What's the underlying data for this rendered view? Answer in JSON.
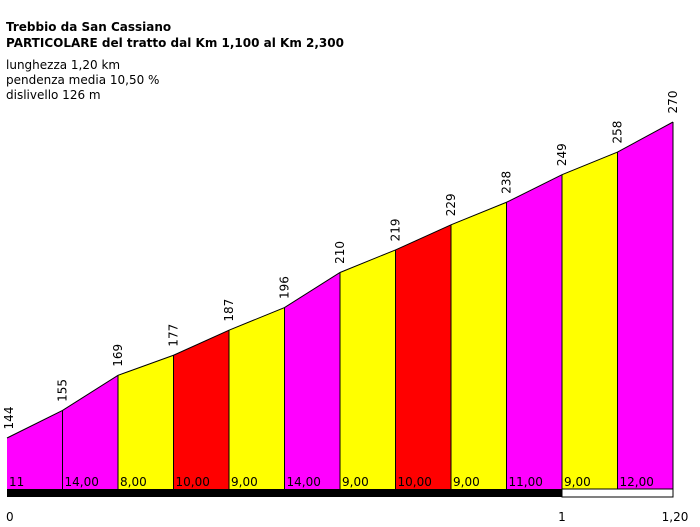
{
  "header": {
    "title": "Trebbio da San Cassiano",
    "subtitle": "PARTICOLARE del tratto dal Km 1,100 al Km 2,300"
  },
  "stats": {
    "length": "lunghezza 1,20 km",
    "avg_gradient": "pendenza media 10,50 %",
    "elevation_gain": "dislivello 126 m"
  },
  "colors": {
    "magenta": "#ff00ff",
    "yellow": "#ffff00",
    "red": "#ff0000",
    "outline": "#000000"
  },
  "chart_data": {
    "type": "area",
    "x_tick_labels": [
      {
        "value": 0,
        "label": "0"
      },
      {
        "value": 1.0,
        "label": "1"
      },
      {
        "value": 1.2,
        "label": "1,20"
      }
    ],
    "xlim": [
      0,
      1.2
    ],
    "ylim": [
      144,
      270
    ],
    "grid": false,
    "segments": [
      {
        "x0": 0.0,
        "x1": 0.1,
        "y0": 144,
        "y1": 155,
        "gradient": "11",
        "color": "magenta"
      },
      {
        "x0": 0.1,
        "x1": 0.2,
        "y0": 155,
        "y1": 169,
        "gradient": "14,00",
        "color": "magenta"
      },
      {
        "x0": 0.2,
        "x1": 0.3,
        "y0": 169,
        "y1": 177,
        "gradient": "8,00",
        "color": "yellow"
      },
      {
        "x0": 0.3,
        "x1": 0.4,
        "y0": 177,
        "y1": 187,
        "gradient": "10,00",
        "color": "red"
      },
      {
        "x0": 0.4,
        "x1": 0.5,
        "y0": 187,
        "y1": 196,
        "gradient": "9,00",
        "color": "yellow"
      },
      {
        "x0": 0.5,
        "x1": 0.6,
        "y0": 196,
        "y1": 210,
        "gradient": "14,00",
        "color": "magenta"
      },
      {
        "x0": 0.6,
        "x1": 0.7,
        "y0": 210,
        "y1": 219,
        "gradient": "9,00",
        "color": "yellow"
      },
      {
        "x0": 0.7,
        "x1": 0.8,
        "y0": 219,
        "y1": 229,
        "gradient": "10,00",
        "color": "red"
      },
      {
        "x0": 0.8,
        "x1": 0.9,
        "y0": 229,
        "y1": 238,
        "gradient": "9,00",
        "color": "yellow"
      },
      {
        "x0": 0.9,
        "x1": 1.0,
        "y0": 238,
        "y1": 249,
        "gradient": "11,00",
        "color": "magenta"
      },
      {
        "x0": 1.0,
        "x1": 1.1,
        "y0": 249,
        "y1": 258,
        "gradient": "9,00",
        "color": "yellow"
      },
      {
        "x0": 1.1,
        "x1": 1.2,
        "y0": 258,
        "y1": 270,
        "gradient": "12,00",
        "color": "magenta"
      }
    ],
    "elevation_labels": [
      "144",
      "155",
      "169",
      "177",
      "187",
      "196",
      "210",
      "219",
      "229",
      "238",
      "249",
      "258",
      "270"
    ]
  }
}
